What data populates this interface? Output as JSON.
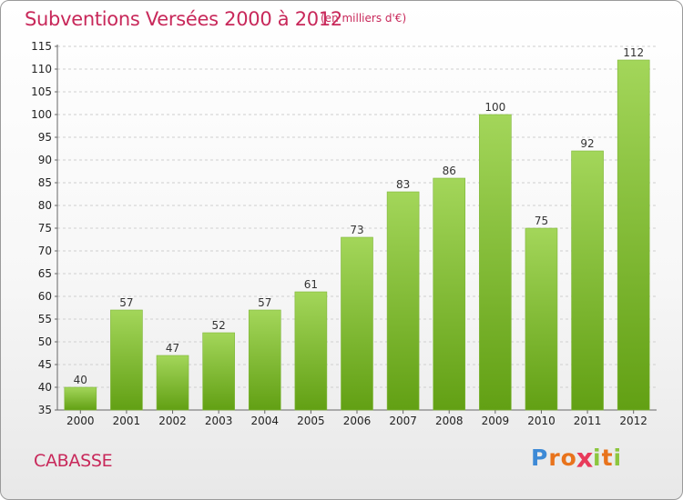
{
  "title": "Subventions Versées 2000 à 2012",
  "unit": "(en milliers d'€)",
  "city": "CABASSE",
  "logo": [
    "P",
    "r",
    "o",
    "x",
    "i",
    "t",
    "i"
  ],
  "colors": {
    "title": "#c8285a",
    "bar_light": "#a3d65a",
    "bar_dark": "#62a014",
    "logo": [
      "#3d8ad6",
      "#e8731c",
      "#e8731c",
      "#e83a5a",
      "#8cc63e",
      "#e8731c",
      "#8cc63e"
    ]
  },
  "chart_data": {
    "type": "bar",
    "categories": [
      "2000",
      "2001",
      "2002",
      "2003",
      "2004",
      "2005",
      "2006",
      "2007",
      "2008",
      "2009",
      "2010",
      "2011",
      "2012"
    ],
    "values": [
      40,
      57,
      47,
      52,
      57,
      61,
      73,
      83,
      86,
      100,
      75,
      92,
      112
    ],
    "ylim": [
      35,
      115
    ],
    "yticks": [
      35,
      40,
      45,
      50,
      55,
      60,
      65,
      70,
      75,
      80,
      85,
      90,
      95,
      100,
      105,
      110,
      115
    ],
    "grid": true,
    "legend": "none"
  }
}
